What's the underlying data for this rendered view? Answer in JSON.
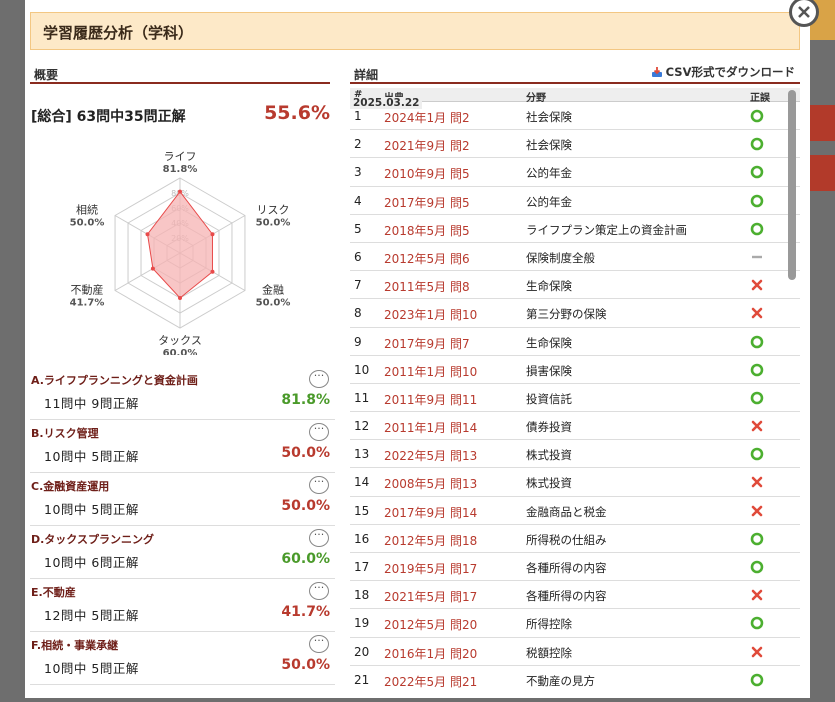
{
  "modal": {
    "title": "学習履歴分析（学科）"
  },
  "overview": {
    "heading": "概要",
    "summary_text": "[総合] 63問中35問正解",
    "summary_pct": "55.6%"
  },
  "radar": {
    "axes": [
      {
        "label": "ライフ",
        "pct_text": "81.8%",
        "value": 81.8
      },
      {
        "label": "リスク",
        "pct_text": "50.0%",
        "value": 50.0
      },
      {
        "label": "金融",
        "pct_text": "50.0%",
        "value": 50.0
      },
      {
        "label": "タックス",
        "pct_text": "60.0%",
        "value": 60.0
      },
      {
        "label": "不動産",
        "pct_text": "41.7%",
        "value": 41.7
      },
      {
        "label": "相続",
        "pct_text": "50.0%",
        "value": 50.0
      }
    ],
    "ring_labels": [
      "20%",
      "40%",
      "60%",
      "80%"
    ],
    "fill_color": "#f6b3b3",
    "stroke_color": "#e84a4a"
  },
  "categories": [
    {
      "name": "A.ライフプランニングと資金計画",
      "stats": "11問中 9問正解",
      "pct": "81.8%",
      "status": "good"
    },
    {
      "name": "B.リスク管理",
      "stats": "10問中 5問正解",
      "pct": "50.0%",
      "status": "bad"
    },
    {
      "name": "C.金融資産運用",
      "stats": "10問中 5問正解",
      "pct": "50.0%",
      "status": "bad"
    },
    {
      "name": "D.タックスプランニング",
      "stats": "10問中 6問正解",
      "pct": "60.0%",
      "status": "good"
    },
    {
      "name": "E.不動産",
      "stats": "12問中 5問正解",
      "pct": "41.7%",
      "status": "bad"
    },
    {
      "name": "F.相続・事業承継",
      "stats": "10問中 5問正解",
      "pct": "50.0%",
      "status": "bad"
    }
  ],
  "more_label": "···",
  "details": {
    "heading": "詳細",
    "csv_label": "CSV形式でダウンロード",
    "columns": {
      "no": "#",
      "source": "出典",
      "field": "分野",
      "result": "正誤"
    },
    "tooltip": "2025.03.22",
    "rows": [
      {
        "no": "1",
        "source": "2024年1月 問2",
        "field": "社会保険",
        "result": "correct"
      },
      {
        "no": "2",
        "source": "2021年9月 問2",
        "field": "社会保険",
        "result": "correct"
      },
      {
        "no": "3",
        "source": "2010年9月 問5",
        "field": "公的年金",
        "result": "correct"
      },
      {
        "no": "4",
        "source": "2017年9月 問5",
        "field": "公的年金",
        "result": "correct"
      },
      {
        "no": "5",
        "source": "2018年5月 問5",
        "field": "ライフプラン策定上の資金計画",
        "result": "correct"
      },
      {
        "no": "6",
        "source": "2012年5月 問6",
        "field": "保険制度全般",
        "result": "none"
      },
      {
        "no": "7",
        "source": "2011年5月 問8",
        "field": "生命保険",
        "result": "wrong"
      },
      {
        "no": "8",
        "source": "2023年1月 問10",
        "field": "第三分野の保険",
        "result": "wrong"
      },
      {
        "no": "9",
        "source": "2017年9月 問7",
        "field": "生命保険",
        "result": "correct"
      },
      {
        "no": "10",
        "source": "2011年1月 問10",
        "field": "損害保険",
        "result": "correct"
      },
      {
        "no": "11",
        "source": "2011年9月 問11",
        "field": "投資信託",
        "result": "correct"
      },
      {
        "no": "12",
        "source": "2011年1月 問14",
        "field": "債券投資",
        "result": "wrong"
      },
      {
        "no": "13",
        "source": "2022年5月 問13",
        "field": "株式投資",
        "result": "correct"
      },
      {
        "no": "14",
        "source": "2008年5月 問13",
        "field": "株式投資",
        "result": "wrong"
      },
      {
        "no": "15",
        "source": "2017年9月 問14",
        "field": "金融商品と税金",
        "result": "wrong"
      },
      {
        "no": "16",
        "source": "2012年5月 問18",
        "field": "所得税の仕組み",
        "result": "correct"
      },
      {
        "no": "17",
        "source": "2019年5月 問17",
        "field": "各種所得の内容",
        "result": "correct"
      },
      {
        "no": "18",
        "source": "2021年5月 問17",
        "field": "各種所得の内容",
        "result": "wrong"
      },
      {
        "no": "19",
        "source": "2012年5月 問20",
        "field": "所得控除",
        "result": "correct"
      },
      {
        "no": "20",
        "source": "2016年1月 問20",
        "field": "税額控除",
        "result": "wrong"
      },
      {
        "no": "21",
        "source": "2022年5月 問21",
        "field": "不動産の見方",
        "result": "correct"
      }
    ]
  },
  "colors": {
    "correct": "#4caf30",
    "wrong": "#e04a3a",
    "none": "#aaaaaa",
    "accent": "#8a2b1f"
  }
}
